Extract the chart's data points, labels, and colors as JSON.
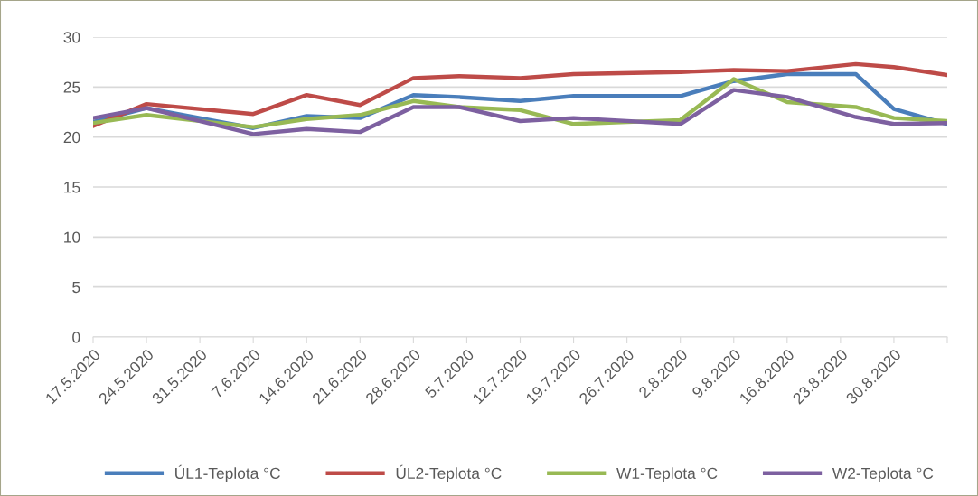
{
  "chart_data": {
    "type": "line",
    "x": [
      "2020-05-17",
      "2020-05-24",
      "2020-06-07",
      "2020-06-14",
      "2020-06-21",
      "2020-06-28",
      "2020-07-04",
      "2020-07-12",
      "2020-07-19",
      "2020-08-02",
      "2020-08-09",
      "2020-08-16",
      "2020-08-25",
      "2020-08-30",
      "2020-09-06"
    ],
    "series": [
      {
        "name": "ÚL1-Teplota °C",
        "color": "#4a7ebb",
        "values": [
          21.5,
          22.9,
          20.9,
          22.1,
          21.9,
          24.2,
          24.0,
          23.6,
          24.1,
          24.1,
          25.6,
          26.3,
          26.3,
          22.8,
          21.3
        ]
      },
      {
        "name": "ÚL2-Teplota °C",
        "color": "#be4b48",
        "values": [
          21.1,
          23.3,
          22.3,
          24.2,
          23.2,
          25.9,
          26.1,
          25.9,
          26.3,
          26.5,
          26.7,
          26.6,
          27.3,
          27.0,
          26.2
        ]
      },
      {
        "name": "W1-Teplota °C",
        "color": "#98b954",
        "values": [
          21.4,
          22.2,
          21.0,
          21.8,
          22.2,
          23.6,
          23.0,
          22.7,
          21.3,
          21.7,
          25.8,
          23.5,
          23.0,
          21.9,
          21.6
        ]
      },
      {
        "name": "W2-Teplota °C",
        "color": "#7d60a0",
        "values": [
          21.9,
          22.9,
          20.3,
          20.8,
          20.5,
          23.0,
          23.0,
          21.6,
          21.9,
          21.3,
          24.7,
          24.0,
          22.0,
          21.3,
          21.4
        ]
      }
    ],
    "xlim": [
      "2020-05-17",
      "2020-09-06"
    ],
    "xticks": [
      {
        "value": "2020-05-17",
        "label": "17.5.2020"
      },
      {
        "value": "2020-05-24",
        "label": "24.5.2020"
      },
      {
        "value": "2020-05-31",
        "label": "31.5.2020"
      },
      {
        "value": "2020-06-07",
        "label": "7.6.2020"
      },
      {
        "value": "2020-06-14",
        "label": "14.6.2020"
      },
      {
        "value": "2020-06-21",
        "label": "21.6.2020"
      },
      {
        "value": "2020-06-28",
        "label": "28.6.2020"
      },
      {
        "value": "2020-07-05",
        "label": "5.7.2020"
      },
      {
        "value": "2020-07-12",
        "label": "12.7.2020"
      },
      {
        "value": "2020-07-19",
        "label": "19.7.2020"
      },
      {
        "value": "2020-07-26",
        "label": "26.7.2020"
      },
      {
        "value": "2020-08-02",
        "label": "2.8.2020"
      },
      {
        "value": "2020-08-09",
        "label": "9.8.2020"
      },
      {
        "value": "2020-08-16",
        "label": "16.8.2020"
      },
      {
        "value": "2020-08-23",
        "label": "23.8.2020"
      },
      {
        "value": "2020-08-30",
        "label": "30.8.2020"
      },
      {
        "value": "2020-09-06",
        "label": null
      }
    ],
    "ylim": [
      0,
      30
    ],
    "yticks": [
      0,
      5,
      10,
      15,
      20,
      25,
      30
    ],
    "grid": "y",
    "legend": "bottom",
    "marker": "none",
    "line_style": "solid"
  }
}
